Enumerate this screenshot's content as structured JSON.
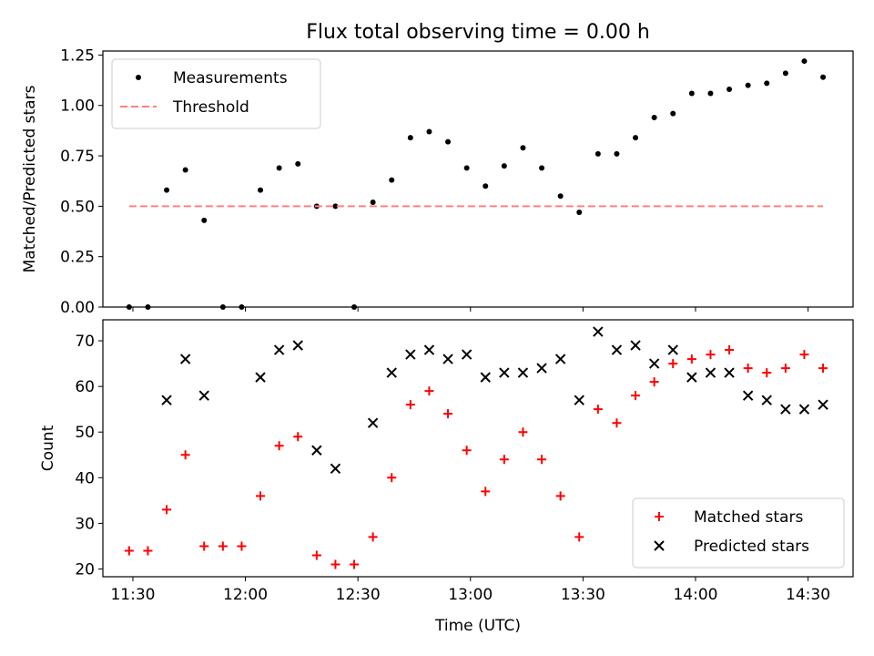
{
  "title": "Flux total observing time = 0.00 h",
  "colors": {
    "measurements": "#000000",
    "threshold": "#ff8080",
    "matched": "#ff0000",
    "predicted": "#000000"
  },
  "chart_data": [
    {
      "type": "scatter",
      "ylabel": "Matched/Predicted stars",
      "ylim": [
        0,
        1.27
      ],
      "yticks": [
        "0.00",
        "0.25",
        "0.50",
        "0.75",
        "1.00",
        "1.25"
      ],
      "ytick_values": [
        0,
        0.25,
        0.5,
        0.75,
        1.0,
        1.25
      ],
      "xlim": [
        "11:22",
        "14:42"
      ],
      "legend": {
        "placement": "top-left",
        "entries": [
          "Measurements",
          "Threshold"
        ]
      },
      "series": [
        {
          "name": "Measurements",
          "marker": "dot",
          "x": [
            "11:29",
            "11:34",
            "11:39",
            "11:44",
            "11:49",
            "11:54",
            "11:59",
            "12:04",
            "12:09",
            "12:14",
            "12:19",
            "12:24",
            "12:29",
            "12:34",
            "12:39",
            "12:44",
            "12:49",
            "12:54",
            "12:59",
            "13:04",
            "13:09",
            "13:14",
            "13:19",
            "13:24",
            "13:29",
            "13:34",
            "13:39",
            "13:44",
            "13:49",
            "13:54",
            "13:59",
            "14:04",
            "14:09",
            "14:14",
            "14:19",
            "14:24",
            "14:29",
            "14:34"
          ],
          "y": [
            0.0,
            0.0,
            0.58,
            0.68,
            0.43,
            0.0,
            0.0,
            0.58,
            0.69,
            0.71,
            0.5,
            0.5,
            0.0,
            0.52,
            0.63,
            0.84,
            0.87,
            0.82,
            0.69,
            0.6,
            0.7,
            0.79,
            0.69,
            0.55,
            0.47,
            0.76,
            0.76,
            0.84,
            0.94,
            0.96,
            1.06,
            1.06,
            1.08,
            1.1,
            1.11,
            1.16,
            1.22,
            1.14
          ]
        },
        {
          "name": "Threshold",
          "marker": "dashed-line",
          "x": [
            "11:29",
            "14:34"
          ],
          "y": [
            0.5,
            0.5
          ]
        }
      ]
    },
    {
      "type": "scatter",
      "xlabel": "Time (UTC)",
      "ylabel": "Count",
      "ylim": [
        18.3,
        74.6
      ],
      "yticks": [
        "20",
        "30",
        "40",
        "50",
        "60",
        "70"
      ],
      "ytick_values": [
        20,
        30,
        40,
        50,
        60,
        70
      ],
      "xlim": [
        "11:22",
        "14:42"
      ],
      "xticks": [
        "11:30",
        "12:00",
        "12:30",
        "13:00",
        "13:30",
        "14:00",
        "14:30"
      ],
      "legend": {
        "placement": "bottom-right",
        "entries": [
          "Matched stars",
          "Predicted stars"
        ]
      },
      "series": [
        {
          "name": "Matched stars",
          "marker": "plus",
          "x": [
            "11:29",
            "11:34",
            "11:39",
            "11:44",
            "11:49",
            "11:54",
            "11:59",
            "12:04",
            "12:09",
            "12:14",
            "12:19",
            "12:24",
            "12:29",
            "12:34",
            "12:39",
            "12:44",
            "12:49",
            "12:54",
            "12:59",
            "13:04",
            "13:09",
            "13:14",
            "13:19",
            "13:24",
            "13:29",
            "13:34",
            "13:39",
            "13:44",
            "13:49",
            "13:54",
            "13:59",
            "14:04",
            "14:09",
            "14:14",
            "14:19",
            "14:24",
            "14:29",
            "14:34"
          ],
          "y": [
            24,
            24,
            33,
            45,
            25,
            25,
            25,
            36,
            47,
            49,
            23,
            21,
            21,
            27,
            40,
            56,
            59,
            54,
            46,
            37,
            44,
            50,
            44,
            36,
            27,
            55,
            52,
            58,
            61,
            65,
            66,
            67,
            68,
            64,
            63,
            64,
            67,
            64
          ]
        },
        {
          "name": "Predicted stars",
          "marker": "x",
          "x": [
            "11:39",
            "11:44",
            "11:49",
            "12:04",
            "12:09",
            "12:14",
            "12:19",
            "12:24",
            "12:34",
            "12:39",
            "12:44",
            "12:49",
            "12:54",
            "12:59",
            "13:04",
            "13:09",
            "13:14",
            "13:19",
            "13:24",
            "13:29",
            "13:34",
            "13:39",
            "13:44",
            "13:49",
            "13:54",
            "13:59",
            "14:04",
            "14:09",
            "14:14",
            "14:19",
            "14:24",
            "14:29",
            "14:34"
          ],
          "y": [
            57,
            66,
            58,
            62,
            68,
            69,
            46,
            42,
            52,
            63,
            67,
            68,
            66,
            67,
            62,
            63,
            63,
            64,
            66,
            57,
            72,
            68,
            69,
            65,
            68,
            62,
            63,
            63,
            58,
            57,
            55,
            55,
            56
          ]
        }
      ]
    }
  ]
}
